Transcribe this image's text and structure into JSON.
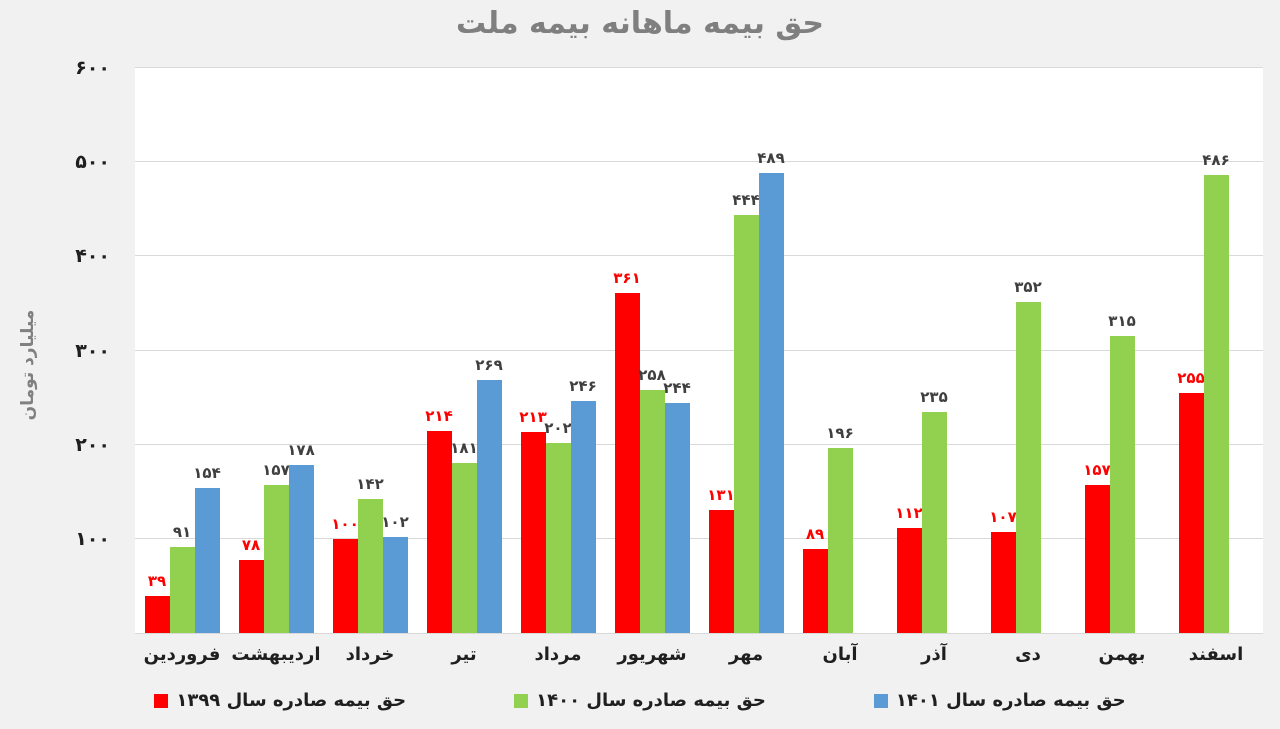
{
  "chart_data": {
    "type": "bar",
    "title": "حق بیمه ماهانه بیمه ملت",
    "ylabel": "میلیارد تومان",
    "xlabel": "",
    "ylim": [
      0,
      600
    ],
    "grid": true,
    "legend_position": "bottom",
    "categories": [
      "فروردین",
      "اردیبهشت",
      "خرداد",
      "تیر",
      "مرداد",
      "شهریور",
      "مهر",
      "آبان",
      "آذر",
      "دی",
      "بهمن",
      "اسفند"
    ],
    "yticks": {
      "values": [
        100,
        200,
        300,
        400,
        500,
        600
      ],
      "labels": [
        "۱۰۰",
        "۲۰۰",
        "۳۰۰",
        "۴۰۰",
        "۵۰۰",
        "۶۰۰"
      ]
    },
    "series": [
      {
        "key": "1399",
        "name": "حق بیمه صادره سال ۱۳۹۹",
        "color": "#FF0000",
        "label_color": "#FF0000",
        "values": [
          39,
          78,
          100,
          214,
          213,
          361,
          131,
          89,
          112,
          107,
          157,
          255
        ],
        "labels": [
          "۳۹",
          "۷۸",
          "۱۰۰",
          "۲۱۴",
          "۲۱۳",
          "۳۶۱",
          "۱۳۱",
          "۸۹",
          "۱۱۲",
          "۱۰۷",
          "۱۵۷",
          "۲۵۵"
        ]
      },
      {
        "key": "1400",
        "name": "حق بیمه صادره سال ۱۴۰۰",
        "color": "#92D050",
        "label_color": "#3F3F3F",
        "values": [
          91,
          157,
          142,
          181,
          202,
          258,
          444,
          196,
          235,
          352,
          315,
          486
        ],
        "labels": [
          "۹۱",
          "۱۵۷",
          "۱۴۲",
          "۱۸۱",
          "۲۰۲",
          "۲۵۸",
          "۴۴۴",
          "۱۹۶",
          "۲۳۵",
          "۳۵۲",
          "۳۱۵",
          "۴۸۶"
        ]
      },
      {
        "key": "1401",
        "name": "حق بیمه صادره سال ۱۴۰۱",
        "color": "#5B9BD5",
        "label_color": "#3F3F3F",
        "values": [
          154,
          178,
          102,
          269,
          246,
          244,
          489,
          null,
          null,
          null,
          null,
          null
        ],
        "labels": [
          "۱۵۴",
          "۱۷۸",
          "۱۰۲",
          "۲۶۹",
          "۲۴۶",
          "۲۴۴",
          "۴۸۹",
          null,
          null,
          null,
          null,
          null
        ]
      }
    ]
  },
  "colors": {
    "background": "#F1F1F2",
    "plot_background": "#FFFFFF",
    "gridline": "#D9D9D9",
    "title": "#7F7F7F",
    "axis_text": "#1F1F1F"
  }
}
